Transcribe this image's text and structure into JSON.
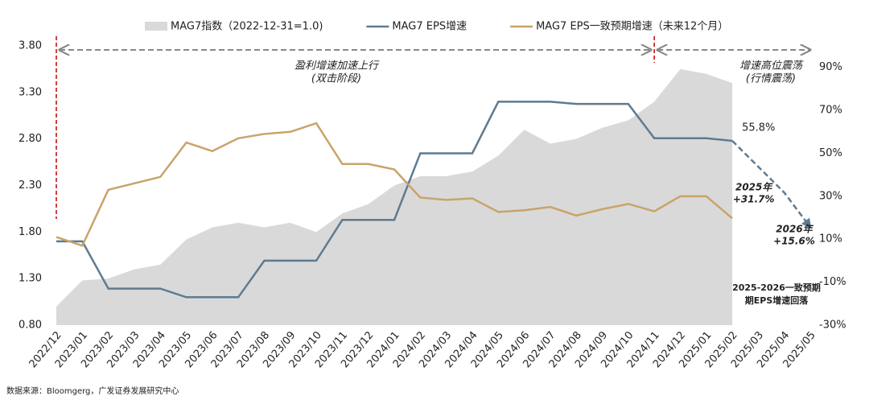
{
  "chart_data": {
    "type": "combo",
    "categories": [
      "2022/12",
      "2023/01",
      "2023/02",
      "2023/03",
      "2023/04",
      "2023/05",
      "2023/06",
      "2023/07",
      "2023/08",
      "2023/09",
      "2023/10",
      "2023/11",
      "2023/12",
      "2024/01",
      "2024/02",
      "2024/03",
      "2024/04",
      "2024/05",
      "2024/06",
      "2024/07",
      "2024/08",
      "2024/09",
      "2024/10",
      "2024/11",
      "2024/12",
      "2025/01",
      "2025/02",
      "2025/03",
      "2025/04",
      "2025/05"
    ],
    "series": [
      {
        "name": "MAG7指数（2022-12-31=1.0)",
        "kind": "area",
        "color": "#d9d9d9",
        "values": [
          1.0,
          1.28,
          1.3,
          1.4,
          1.45,
          1.72,
          1.85,
          1.9,
          1.85,
          1.9,
          1.8,
          2.0,
          2.1,
          2.3,
          2.4,
          2.4,
          2.45,
          2.62,
          2.9,
          2.75,
          2.8,
          2.92,
          3.0,
          3.2,
          3.55,
          3.5,
          3.4,
          null,
          null,
          null
        ]
      },
      {
        "name": "MAG7 EPS增速",
        "kind": "line",
        "axis": "y2",
        "color": "#5f7a8f",
        "values": [
          9,
          9,
          -13,
          -13,
          -13,
          -17,
          -17,
          -17,
          0,
          0,
          0,
          19,
          19,
          19,
          50,
          50,
          50,
          74,
          74,
          74,
          73,
          73,
          73,
          57,
          57,
          57,
          55.8,
          null,
          null,
          null
        ]
      },
      {
        "name": "MAG7 EPS一致预期增速（未来12个月）",
        "kind": "line",
        "axis": "y2",
        "color": "#c9a36b",
        "values": [
          11,
          7,
          33,
          36,
          39,
          55,
          51,
          57,
          59,
          60,
          64,
          45,
          45,
          42.5,
          29.4,
          28.3,
          29,
          22.7,
          23.5,
          25,
          21,
          24,
          26.4,
          23,
          30,
          30,
          19.7,
          null,
          null,
          null
        ]
      }
    ],
    "forecast": {
      "color": "#5f7a8f",
      "categories": [
        "2025/02",
        "2025/04",
        "2025/05"
      ],
      "values": [
        55.8,
        31.7,
        15.6
      ],
      "value_labels": [
        "55.8%",
        "+31.7%",
        "+15.6%"
      ]
    },
    "ylim": [
      0.8,
      3.8
    ],
    "yticks": [
      {
        "value": 0.8,
        "label": "0.80"
      },
      {
        "value": 1.3,
        "label": "1.30"
      },
      {
        "value": 1.8,
        "label": "1.80"
      },
      {
        "value": 2.3,
        "label": "2.30"
      },
      {
        "value": 2.8,
        "label": "2.80"
      },
      {
        "value": 3.3,
        "label": "3.30"
      },
      {
        "value": 3.8,
        "label": "3.80"
      }
    ],
    "y2lim": [
      -30,
      100
    ],
    "y2ticks": [
      {
        "value": -30,
        "label": "-30%"
      },
      {
        "value": -10,
        "label": "-10%"
      },
      {
        "value": 10,
        "label": "10%"
      },
      {
        "value": 30,
        "label": "30%"
      },
      {
        "value": 50,
        "label": "50%"
      },
      {
        "value": 70,
        "label": "70%"
      },
      {
        "value": 90,
        "label": "90%"
      }
    ],
    "annotations": [
      "盈利增速加速上行",
      "(双击阶段)",
      "增速高位震荡",
      "(行情震荡)",
      "2025年",
      "2026年",
      "2025-2026一致预期",
      "期EPS增速回落"
    ],
    "source": "数据来源：Bloomgerg，广发证券发展研究中心"
  }
}
